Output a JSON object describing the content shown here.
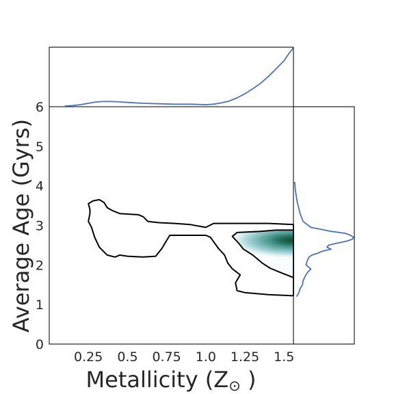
{
  "chart_data": {
    "type": "joint-kde",
    "xlabel": "Metallicity (Z",
    "xlabel_symbol": "⊙",
    "xlabel_close": ")",
    "ylabel": "Average Age (Gyrs)",
    "x_ticks": [
      "0.25",
      "0.5",
      "0.75",
      "1.0",
      "1.25",
      "1.5"
    ],
    "x_tick_values": [
      0.25,
      0.5,
      0.75,
      1.0,
      1.25,
      1.5
    ],
    "y_ticks": [
      "0",
      "1",
      "2",
      "3",
      "4",
      "5",
      "6"
    ],
    "y_tick_values": [
      0,
      1,
      2,
      3,
      4,
      5,
      6
    ],
    "xlim": [
      0.0,
      1.56
    ],
    "ylim": [
      0,
      6
    ],
    "grid": false,
    "colors": {
      "contour": "#000000",
      "marginal": "#4c72b0",
      "density_peak": "#0f4a35",
      "density_light": "#e8f4f6"
    },
    "density_peak": {
      "x": 1.56,
      "y": 2.63
    },
    "contours": [
      {
        "name": "outer",
        "points": [
          [
            0.26,
            3.4
          ],
          [
            0.25,
            3.55
          ],
          [
            0.28,
            3.62
          ],
          [
            0.32,
            3.65
          ],
          [
            0.35,
            3.58
          ],
          [
            0.37,
            3.45
          ],
          [
            0.4,
            3.38
          ],
          [
            0.45,
            3.3
          ],
          [
            0.52,
            3.28
          ],
          [
            0.57,
            3.27
          ],
          [
            0.6,
            3.22
          ],
          [
            0.63,
            3.1
          ],
          [
            0.7,
            3.07
          ],
          [
            0.8,
            3.05
          ],
          [
            0.9,
            3.02
          ],
          [
            1.0,
            2.95
          ],
          [
            1.05,
            3.05
          ],
          [
            1.2,
            3.05
          ],
          [
            1.4,
            3.05
          ],
          [
            1.56,
            3.02
          ],
          [
            1.56,
            1.22
          ],
          [
            1.4,
            1.25
          ],
          [
            1.25,
            1.3
          ],
          [
            1.2,
            1.35
          ],
          [
            1.19,
            1.55
          ],
          [
            1.22,
            1.75
          ],
          [
            1.17,
            1.9
          ],
          [
            1.14,
            2.05
          ],
          [
            1.12,
            2.25
          ],
          [
            1.08,
            2.42
          ],
          [
            1.03,
            2.7
          ],
          [
            1.0,
            2.75
          ],
          [
            0.77,
            2.75
          ],
          [
            0.75,
            2.62
          ],
          [
            0.72,
            2.42
          ],
          [
            0.68,
            2.22
          ],
          [
            0.6,
            2.2
          ],
          [
            0.5,
            2.22
          ],
          [
            0.45,
            2.25
          ],
          [
            0.42,
            2.2
          ],
          [
            0.37,
            2.25
          ],
          [
            0.32,
            2.45
          ],
          [
            0.29,
            2.7
          ],
          [
            0.27,
            2.95
          ],
          [
            0.25,
            3.1
          ],
          [
            0.26,
            3.3
          ],
          [
            0.26,
            3.4
          ]
        ]
      },
      {
        "name": "inner",
        "points": [
          [
            1.56,
            2.88
          ],
          [
            1.45,
            2.88
          ],
          [
            1.35,
            2.85
          ],
          [
            1.2,
            2.82
          ],
          [
            1.17,
            2.72
          ],
          [
            1.21,
            2.55
          ],
          [
            1.24,
            2.4
          ],
          [
            1.3,
            2.25
          ],
          [
            1.36,
            2.05
          ],
          [
            1.41,
            1.92
          ],
          [
            1.47,
            1.82
          ],
          [
            1.56,
            1.68
          ],
          [
            1.56,
            2.88
          ]
        ]
      }
    ],
    "marginal_x": {
      "x": [
        0.1,
        0.15,
        0.2,
        0.25,
        0.3,
        0.35,
        0.4,
        0.45,
        0.5,
        0.6,
        0.7,
        0.8,
        0.9,
        1.0,
        1.05,
        1.1,
        1.15,
        1.2,
        1.25,
        1.3,
        1.35,
        1.4,
        1.45,
        1.5,
        1.53,
        1.56
      ],
      "density": [
        0.0,
        0.01,
        0.03,
        0.06,
        0.09,
        0.1,
        0.1,
        0.09,
        0.08,
        0.06,
        0.05,
        0.04,
        0.04,
        0.03,
        0.04,
        0.07,
        0.11,
        0.18,
        0.27,
        0.38,
        0.5,
        0.65,
        0.82,
        1.0,
        1.15,
        1.28
      ]
    },
    "marginal_y": {
      "y": [
        4.1,
        3.9,
        3.6,
        3.3,
        3.1,
        2.95,
        2.9,
        2.85,
        2.8,
        2.75,
        2.7,
        2.65,
        2.6,
        2.55,
        2.5,
        2.45,
        2.4,
        2.35,
        2.3,
        2.25,
        2.2,
        2.1,
        2.0,
        1.9,
        1.8,
        1.7,
        1.6,
        1.5,
        1.4,
        1.3,
        1.2
      ],
      "density": [
        0.01,
        0.02,
        0.05,
        0.1,
        0.15,
        0.28,
        0.45,
        0.62,
        0.86,
        0.95,
        1.0,
        0.98,
        0.88,
        0.72,
        0.58,
        0.55,
        0.62,
        0.48,
        0.4,
        0.3,
        0.25,
        0.22,
        0.2,
        0.28,
        0.22,
        0.18,
        0.15,
        0.14,
        0.1,
        0.08,
        0.04
      ]
    }
  }
}
